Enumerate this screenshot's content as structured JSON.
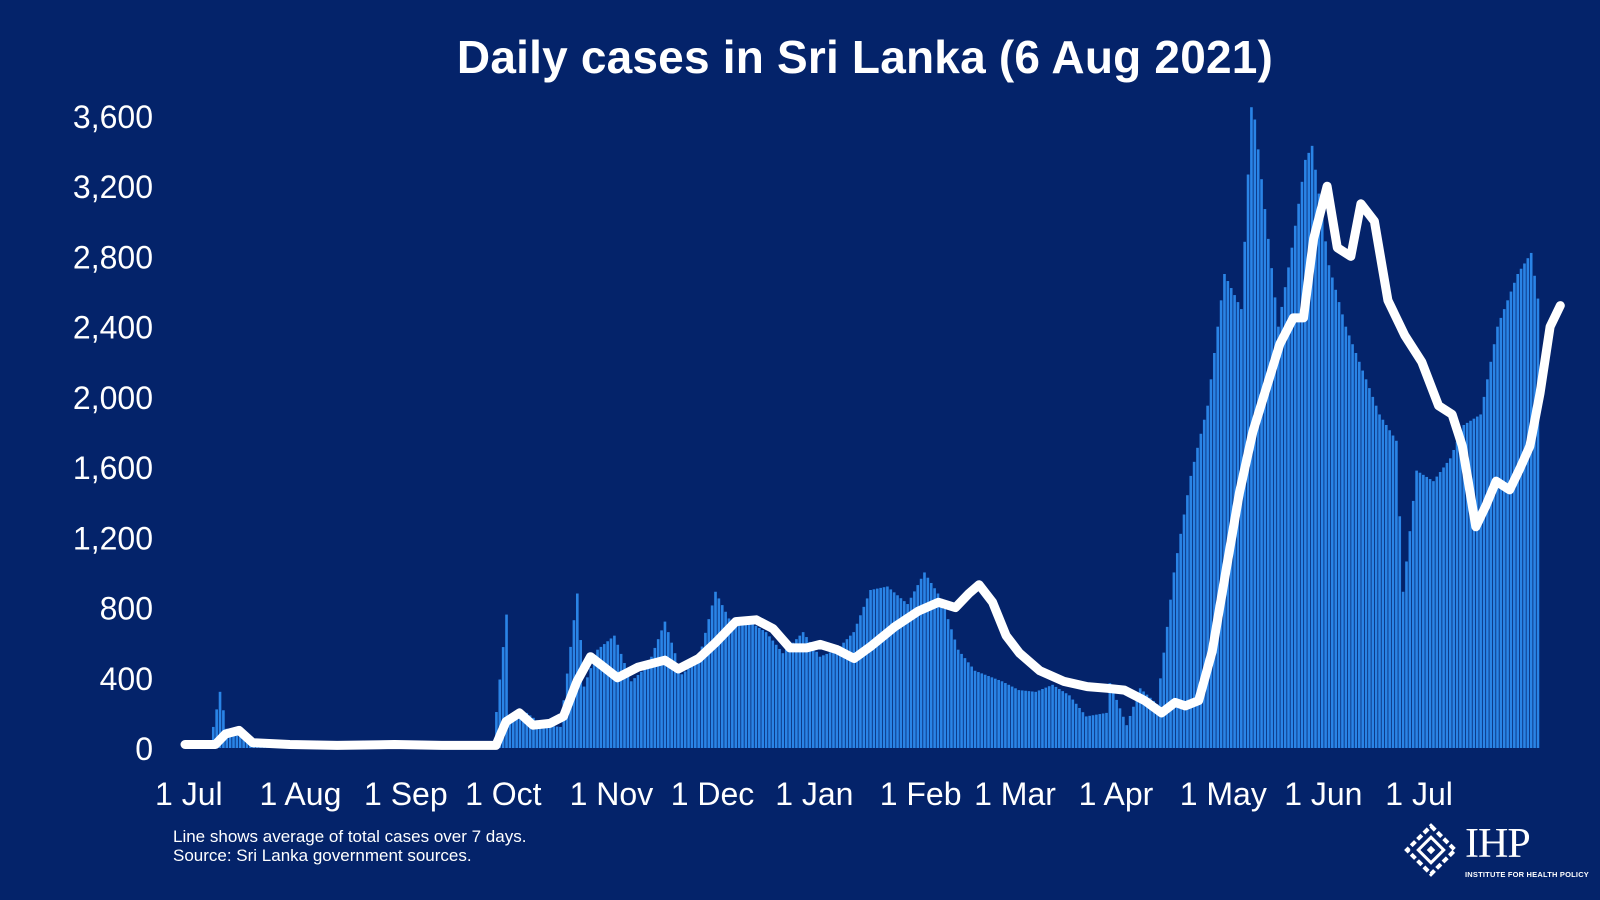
{
  "chart_data": {
    "type": "bar",
    "title": "Daily cases in Sri Lanka (6 Aug 2021)",
    "xlabel": "",
    "ylabel": "",
    "ylim": [
      0,
      3600
    ],
    "yticks": [
      "0",
      "400",
      "800",
      "1,200",
      "1,600",
      "2,000",
      "2,400",
      "2,800",
      "3,200",
      "3,600"
    ],
    "x_range": [
      "2020-07-01",
      "2021-08-06"
    ],
    "x_tick_labels": [
      "1 Jul",
      "1 Aug",
      "1 Sep",
      "1 Oct",
      "1 Nov",
      "1 Dec",
      "1 Jan",
      "1 Feb",
      "1 Mar",
      "1 Apr",
      "1 May",
      "1 Jun",
      "1 Jul"
    ],
    "grid": false,
    "legend": "none",
    "series": [
      {
        "kind": "bars",
        "color": "#2a84e6",
        "points": [
          [
            "2020-07-01",
            25
          ],
          [
            "2020-07-08",
            20
          ],
          [
            "2020-07-11",
            320
          ],
          [
            "2020-07-13",
            110
          ],
          [
            "2020-07-20",
            30
          ],
          [
            "2020-07-31",
            20
          ],
          [
            "2020-08-31",
            25
          ],
          [
            "2020-09-30",
            20
          ],
          [
            "2020-10-04",
            760
          ],
          [
            "2020-10-05",
            180
          ],
          [
            "2020-10-10",
            200
          ],
          [
            "2020-10-15",
            130
          ],
          [
            "2020-10-20",
            120
          ],
          [
            "2020-10-25",
            880
          ],
          [
            "2020-10-27",
            350
          ],
          [
            "2020-10-31",
            560
          ],
          [
            "2020-11-05",
            640
          ],
          [
            "2020-11-10",
            380
          ],
          [
            "2020-11-15",
            470
          ],
          [
            "2020-11-20",
            720
          ],
          [
            "2020-11-25",
            420
          ],
          [
            "2020-11-30",
            500
          ],
          [
            "2020-12-05",
            890
          ],
          [
            "2020-12-10",
            700
          ],
          [
            "2020-12-15",
            720
          ],
          [
            "2020-12-20",
            660
          ],
          [
            "2020-12-25",
            540
          ],
          [
            "2020-12-31",
            660
          ],
          [
            "2021-01-05",
            520
          ],
          [
            "2021-01-10",
            560
          ],
          [
            "2021-01-15",
            660
          ],
          [
            "2021-01-20",
            900
          ],
          [
            "2021-01-25",
            920
          ],
          [
            "2021-01-31",
            820
          ],
          [
            "2021-02-05",
            1000
          ],
          [
            "2021-02-10",
            850
          ],
          [
            "2021-02-15",
            560
          ],
          [
            "2021-02-20",
            440
          ],
          [
            "2021-02-28",
            380
          ],
          [
            "2021-03-05",
            330
          ],
          [
            "2021-03-10",
            320
          ],
          [
            "2021-03-15",
            360
          ],
          [
            "2021-03-20",
            300
          ],
          [
            "2021-03-25",
            180
          ],
          [
            "2021-03-31",
            200
          ],
          [
            "2021-04-01",
            370
          ],
          [
            "2021-04-06",
            130
          ],
          [
            "2021-04-10",
            340
          ],
          [
            "2021-04-15",
            250
          ],
          [
            "2021-04-18",
            690
          ],
          [
            "2021-04-20",
            1000
          ],
          [
            "2021-04-25",
            1550
          ],
          [
            "2021-04-30",
            1950
          ],
          [
            "2021-05-05",
            2700
          ],
          [
            "2021-05-10",
            2500
          ],
          [
            "2021-05-13",
            3650
          ],
          [
            "2021-05-14",
            3580
          ],
          [
            "2021-05-18",
            2900
          ],
          [
            "2021-05-21",
            2400
          ],
          [
            "2021-05-25",
            2850
          ],
          [
            "2021-05-29",
            3350
          ],
          [
            "2021-05-31",
            3430
          ],
          [
            "2021-06-05",
            2750
          ],
          [
            "2021-06-10",
            2400
          ],
          [
            "2021-06-15",
            2150
          ],
          [
            "2021-06-20",
            1900
          ],
          [
            "2021-06-25",
            1750
          ],
          [
            "2021-06-27",
            890
          ],
          [
            "2021-07-01",
            1580
          ],
          [
            "2021-07-06",
            1520
          ],
          [
            "2021-07-11",
            1650
          ],
          [
            "2021-07-15",
            1840
          ],
          [
            "2021-07-20",
            1900
          ],
          [
            "2021-07-25",
            2400
          ],
          [
            "2021-07-31",
            2700
          ],
          [
            "2021-08-04",
            2820
          ],
          [
            "2021-08-06",
            2560
          ]
        ]
      },
      {
        "kind": "line",
        "color": "#ffffff",
        "points": [
          [
            "2020-07-01",
            20
          ],
          [
            "2020-07-10",
            20
          ],
          [
            "2020-07-13",
            80
          ],
          [
            "2020-07-17",
            100
          ],
          [
            "2020-07-21",
            30
          ],
          [
            "2020-08-01",
            20
          ],
          [
            "2020-08-15",
            15
          ],
          [
            "2020-09-01",
            20
          ],
          [
            "2020-09-15",
            15
          ],
          [
            "2020-10-01",
            15
          ],
          [
            "2020-10-04",
            150
          ],
          [
            "2020-10-08",
            200
          ],
          [
            "2020-10-12",
            130
          ],
          [
            "2020-10-17",
            140
          ],
          [
            "2020-10-21",
            180
          ],
          [
            "2020-10-25",
            380
          ],
          [
            "2020-10-29",
            520
          ],
          [
            "2020-11-02",
            460
          ],
          [
            "2020-11-06",
            400
          ],
          [
            "2020-11-12",
            460
          ],
          [
            "2020-11-20",
            500
          ],
          [
            "2020-11-24",
            450
          ],
          [
            "2020-11-30",
            510
          ],
          [
            "2020-12-05",
            600
          ],
          [
            "2020-12-11",
            720
          ],
          [
            "2020-12-17",
            730
          ],
          [
            "2020-12-22",
            680
          ],
          [
            "2020-12-27",
            570
          ],
          [
            "2021-01-01",
            570
          ],
          [
            "2021-01-05",
            590
          ],
          [
            "2021-01-10",
            560
          ],
          [
            "2021-01-15",
            510
          ],
          [
            "2021-01-20",
            580
          ],
          [
            "2021-01-27",
            690
          ],
          [
            "2021-02-03",
            780
          ],
          [
            "2021-02-09",
            830
          ],
          [
            "2021-02-14",
            800
          ],
          [
            "2021-02-18",
            880
          ],
          [
            "2021-02-21",
            930
          ],
          [
            "2021-02-25",
            830
          ],
          [
            "2021-03-01",
            640
          ],
          [
            "2021-03-05",
            540
          ],
          [
            "2021-03-11",
            440
          ],
          [
            "2021-03-18",
            380
          ],
          [
            "2021-03-25",
            350
          ],
          [
            "2021-03-31",
            340
          ],
          [
            "2021-04-05",
            330
          ],
          [
            "2021-04-11",
            270
          ],
          [
            "2021-04-16",
            200
          ],
          [
            "2021-04-20",
            260
          ],
          [
            "2021-04-23",
            240
          ],
          [
            "2021-04-27",
            270
          ],
          [
            "2021-05-01",
            550
          ],
          [
            "2021-05-05",
            1000
          ],
          [
            "2021-05-09",
            1450
          ],
          [
            "2021-05-13",
            1800
          ],
          [
            "2021-05-17",
            2050
          ],
          [
            "2021-05-21",
            2300
          ],
          [
            "2021-05-25",
            2450
          ],
          [
            "2021-05-28",
            2450
          ],
          [
            "2021-05-31",
            2900
          ],
          [
            "2021-06-04",
            3200
          ],
          [
            "2021-06-07",
            2850
          ],
          [
            "2021-06-11",
            2800
          ],
          [
            "2021-06-14",
            3100
          ],
          [
            "2021-06-18",
            3000
          ],
          [
            "2021-06-22",
            2550
          ],
          [
            "2021-06-27",
            2350
          ],
          [
            "2021-07-02",
            2200
          ],
          [
            "2021-07-07",
            1950
          ],
          [
            "2021-07-11",
            1900
          ],
          [
            "2021-07-14",
            1720
          ],
          [
            "2021-07-18",
            1260
          ],
          [
            "2021-07-21",
            1380
          ],
          [
            "2021-07-24",
            1520
          ],
          [
            "2021-07-28",
            1470
          ],
          [
            "2021-07-31",
            1590
          ],
          [
            "2021-08-03",
            1720
          ],
          [
            "2021-08-06",
            2020
          ],
          [
            "2021-08-09",
            2400
          ],
          [
            "2021-08-12",
            2520
          ]
        ]
      }
    ]
  },
  "notes": {
    "line1": "Line shows average of total cases over 7 days.",
    "line2": "Source: Sri Lanka government sources."
  },
  "logo": {
    "text": "IHP",
    "subtitle": "INSTITUTE FOR HEALTH POLICY",
    "icon": "ihp-emblem-icon"
  },
  "colors": {
    "background": "#04236a",
    "bars": "#2a84e6",
    "line": "#ffffff",
    "text": "#ffffff"
  }
}
